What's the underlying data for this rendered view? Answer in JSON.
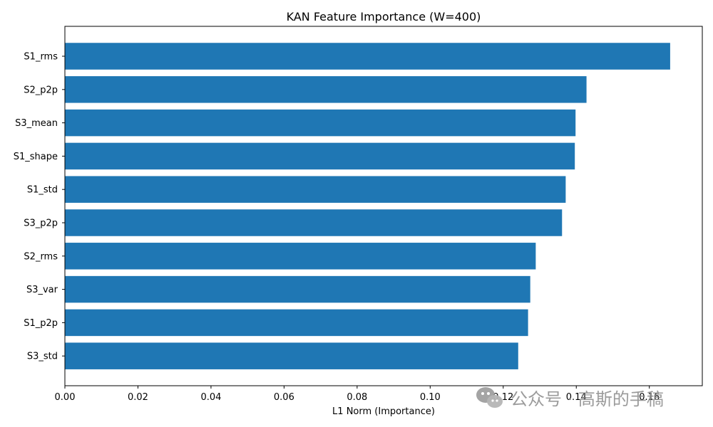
{
  "chart_data": {
    "type": "bar",
    "orientation": "horizontal",
    "title": "KAN Feature Importance (W=400)",
    "xlabel": "L1 Norm (Importance)",
    "ylabel": "",
    "categories": [
      "S1_rms",
      "S2_p2p",
      "S3_mean",
      "S1_shape",
      "S1_std",
      "S3_p2p",
      "S2_rms",
      "S3_var",
      "S1_p2p",
      "S3_std"
    ],
    "values": [
      0.1657,
      0.1428,
      0.1398,
      0.1396,
      0.1371,
      0.1361,
      0.1289,
      0.1274,
      0.1268,
      0.1241
    ],
    "xlim": [
      0.0,
      0.1745
    ],
    "xticks": [
      "0.00",
      "0.02",
      "0.04",
      "0.06",
      "0.08",
      "0.10",
      "0.12",
      "0.14",
      "0.16"
    ],
    "bar_color": "#1f77b4",
    "grid": false,
    "legend": "none"
  },
  "watermark": {
    "icon": "wechat-icon",
    "text": "公众号 · 高斯的手稿"
  }
}
